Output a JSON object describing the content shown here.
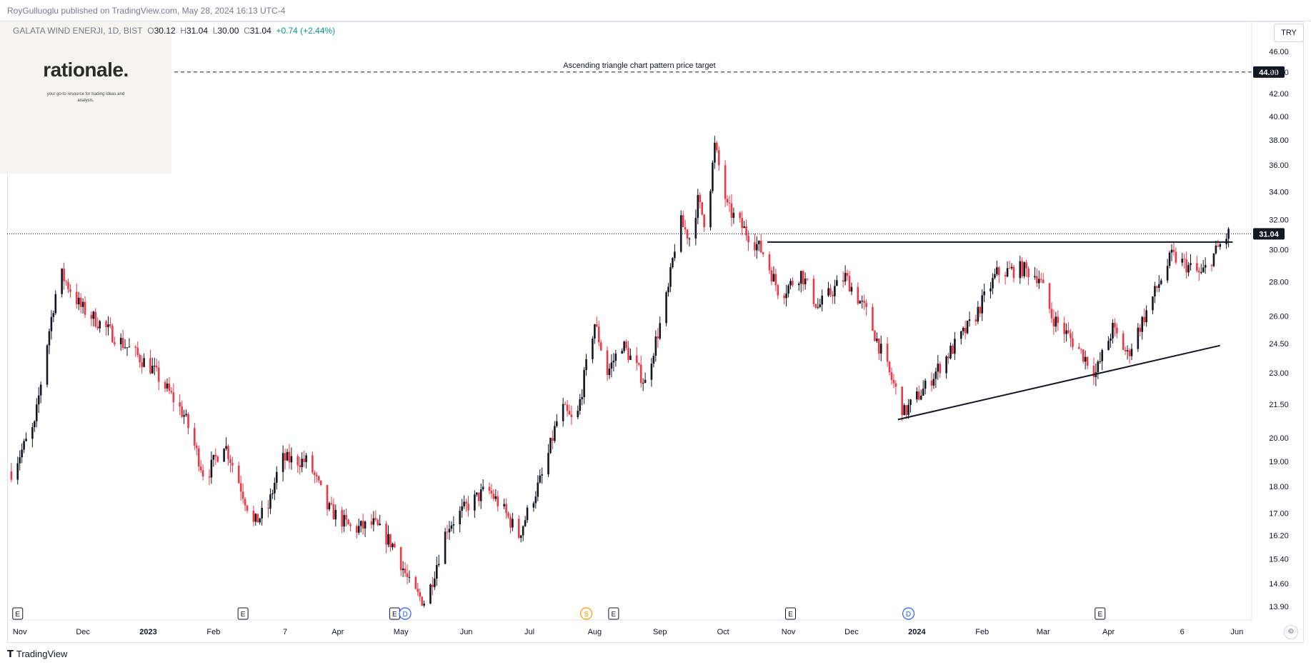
{
  "header": {
    "published_by": "RoyGulluoglu published on TradingView.com, May 28, 2024 16:13 UTC-4"
  },
  "legend": {
    "symbol": "GALATA WIND ENERJI, 1D, BIST",
    "open_label": "O",
    "open": "30.12",
    "high_label": "H",
    "high": "31.04",
    "low_label": "L",
    "low": "30.00",
    "close_label": "C",
    "close": "31.04",
    "change": "+0.74 (+2.44%)"
  },
  "logo": {
    "name": "rationale.",
    "tagline": "your go-to resource for trading ideas and analysis."
  },
  "currency": "TRY",
  "footer": {
    "brand": "TradingView",
    "brand_icon": "tradingview-logo-icon"
  },
  "colors": {
    "up": "#131722",
    "down": "#f23645",
    "axis_text": "#131722",
    "grid": "#e0e3eb",
    "badge_bg": "#131722",
    "badge_text": "#ffffff",
    "event_blue": "#2962ff",
    "event_orange": "#ff9800"
  },
  "chart_data": {
    "type": "candlestick",
    "scale": "log",
    "ylim": [
      13.5,
      49.0
    ],
    "y_ticks": [
      "46.00",
      "44.00",
      "42.00",
      "40.00",
      "38.00",
      "36.00",
      "34.00",
      "32.00",
      "30.00",
      "28.00",
      "26.00",
      "24.50",
      "23.00",
      "21.50",
      "20.00",
      "19.00",
      "18.00",
      "17.00",
      "16.20",
      "15.40",
      "14.60",
      "13.90"
    ],
    "x_ticks": [
      {
        "label": "Nov",
        "date": "2022-11-01"
      },
      {
        "label": "Dec",
        "date": "2022-12-01"
      },
      {
        "label": "2023",
        "date": "2023-01-01",
        "bold": true
      },
      {
        "label": "Feb",
        "date": "2023-02-01"
      },
      {
        "label": "7",
        "date": "2023-03-07"
      },
      {
        "label": "Apr",
        "date": "2023-04-01"
      },
      {
        "label": "May",
        "date": "2023-05-01"
      },
      {
        "label": "Jun",
        "date": "2023-06-01"
      },
      {
        "label": "Jul",
        "date": "2023-07-01"
      },
      {
        "label": "Aug",
        "date": "2023-08-01"
      },
      {
        "label": "Sep",
        "date": "2023-09-01"
      },
      {
        "label": "Oct",
        "date": "2023-10-01"
      },
      {
        "label": "Nov",
        "date": "2023-11-01"
      },
      {
        "label": "Dec",
        "date": "2023-12-01"
      },
      {
        "label": "2024",
        "date": "2024-01-01",
        "bold": true
      },
      {
        "label": "Feb",
        "date": "2024-02-01"
      },
      {
        "label": "Mar",
        "date": "2024-03-01"
      },
      {
        "label": "Apr",
        "date": "2024-04-01"
      },
      {
        "label": "6",
        "date": "2024-05-06"
      },
      {
        "label": "Jun",
        "date": "2024-06-01"
      }
    ],
    "price_path": [
      [
        "2022-10-28",
        18.6
      ],
      [
        "2022-11-08",
        20.5
      ],
      [
        "2022-11-20",
        28.6
      ],
      [
        "2022-11-30",
        26.5
      ],
      [
        "2022-12-20",
        24.5
      ],
      [
        "2023-01-03",
        23.2
      ],
      [
        "2023-01-18",
        21.0
      ],
      [
        "2023-01-28",
        18.3
      ],
      [
        "2023-02-06",
        19.8
      ],
      [
        "2023-02-20",
        16.6
      ],
      [
        "2023-02-27",
        17.2
      ],
      [
        "2023-03-05",
        19.1
      ],
      [
        "2023-03-18",
        19.0
      ],
      [
        "2023-03-27",
        17.2
      ],
      [
        "2023-04-08",
        16.4
      ],
      [
        "2023-04-18",
        16.6
      ],
      [
        "2023-04-28",
        15.8
      ],
      [
        "2023-05-06",
        14.4
      ],
      [
        "2023-05-13",
        14.0
      ],
      [
        "2023-05-23",
        16.5
      ],
      [
        "2023-06-02",
        17.3
      ],
      [
        "2023-06-11",
        17.9
      ],
      [
        "2023-06-18",
        17.2
      ],
      [
        "2023-06-26",
        16.2
      ],
      [
        "2023-07-08",
        18.6
      ],
      [
        "2023-07-16",
        21.4
      ],
      [
        "2023-07-23",
        20.5
      ],
      [
        "2023-08-01",
        25.6
      ],
      [
        "2023-08-07",
        23.0
      ],
      [
        "2023-08-14",
        24.5
      ],
      [
        "2023-08-25",
        22.5
      ],
      [
        "2023-09-01",
        25.5
      ],
      [
        "2023-09-05",
        27.5
      ],
      [
        "2023-09-10",
        32.0
      ],
      [
        "2023-09-15",
        30.8
      ],
      [
        "2023-09-19",
        33.3
      ],
      [
        "2023-09-23",
        31.5
      ],
      [
        "2023-09-27",
        37.5
      ],
      [
        "2023-10-03",
        32.8
      ],
      [
        "2023-10-10",
        31.5
      ],
      [
        "2023-10-20",
        29.8
      ],
      [
        "2023-10-28",
        27.2
      ],
      [
        "2023-11-07",
        28.5
      ],
      [
        "2023-11-15",
        26.5
      ],
      [
        "2023-11-28",
        28.3
      ],
      [
        "2023-12-08",
        26.2
      ],
      [
        "2023-12-18",
        23.2
      ],
      [
        "2023-12-26",
        21.1
      ],
      [
        "2024-01-05",
        22.3
      ],
      [
        "2024-01-19",
        24.4
      ],
      [
        "2024-01-28",
        25.8
      ],
      [
        "2024-02-08",
        28.5
      ],
      [
        "2024-02-20",
        28.8
      ],
      [
        "2024-02-28",
        28.3
      ],
      [
        "2024-03-05",
        26.0
      ],
      [
        "2024-03-18",
        24.2
      ],
      [
        "2024-03-26",
        23.0
      ],
      [
        "2024-04-03",
        25.3
      ],
      [
        "2024-04-10",
        23.9
      ],
      [
        "2024-04-20",
        26.5
      ],
      [
        "2024-05-01",
        29.6
      ],
      [
        "2024-05-15",
        28.4
      ],
      [
        "2024-05-24",
        30.3
      ],
      [
        "2024-05-28",
        31.04
      ]
    ],
    "last_price": {
      "value": 31.04,
      "label": "31.04"
    },
    "annotations": [
      {
        "type": "horizontal_dashed",
        "value": 44.0,
        "badge": "44.00",
        "text": "Ascending triangle chart pattern price target"
      },
      {
        "type": "trend_line",
        "start": [
          "2023-10-22",
          30.5
        ],
        "end": [
          "2024-05-30",
          30.5
        ]
      },
      {
        "type": "trend_line",
        "start": [
          "2023-12-23",
          20.8
        ],
        "end": [
          "2024-05-24",
          24.4
        ]
      }
    ],
    "events": [
      {
        "date": "2022-10-31",
        "label": "E",
        "kind": "earnings"
      },
      {
        "date": "2023-02-15",
        "label": "E",
        "kind": "earnings"
      },
      {
        "date": "2023-04-28",
        "label": "E",
        "kind": "earnings"
      },
      {
        "date": "2023-05-03",
        "label": "D",
        "kind": "dividend"
      },
      {
        "date": "2023-07-28",
        "label": "S",
        "kind": "split"
      },
      {
        "date": "2023-08-10",
        "label": "E",
        "kind": "earnings"
      },
      {
        "date": "2023-11-02",
        "label": "E",
        "kind": "earnings"
      },
      {
        "date": "2023-12-28",
        "label": "D",
        "kind": "dividend"
      },
      {
        "date": "2024-03-28",
        "label": "E",
        "kind": "earnings"
      }
    ]
  }
}
